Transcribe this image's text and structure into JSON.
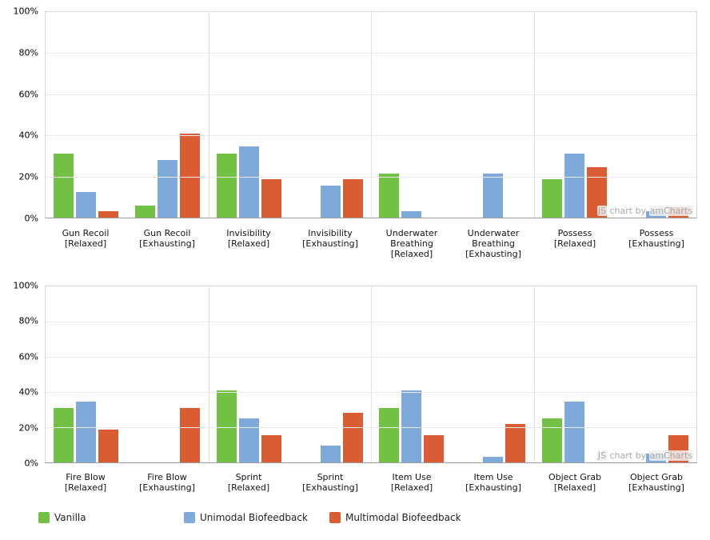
{
  "watermark": {
    "prefix": "JS",
    "middle": " chart by ",
    "suffix": "amCharts",
    "text": "JS chart by amCharts"
  },
  "colors": {
    "vanilla": "#72C144",
    "unimodal": "#7FA9D9",
    "multimodal": "#DA5C33",
    "grid_h": "#E9E9E9",
    "grid_v": "#E2E2E2",
    "plot_border": "#D6D6D6",
    "axis_line": "#9E9E9E"
  },
  "y_axis": {
    "ticks": [
      {
        "label": "0%",
        "value": 0
      },
      {
        "label": "20%",
        "value": 20
      },
      {
        "label": "40%",
        "value": 40
      },
      {
        "label": "60%",
        "value": 60
      },
      {
        "label": "80%",
        "value": 80
      },
      {
        "label": "100%",
        "value": 100
      }
    ]
  },
  "legend": {
    "items": [
      {
        "label": "Vanilla",
        "color": "#72C144"
      },
      {
        "label": "Unimodal Biofeedback",
        "color": "#7FA9D9"
      },
      {
        "label": "Multimodal Biofeedback",
        "color": "#DA5C33"
      }
    ]
  },
  "chart_data": [
    {
      "type": "bar",
      "title": "",
      "ylabel": "",
      "xlabel": "",
      "ylim": [
        0,
        100
      ],
      "grid": true,
      "legend_position": "bottom-shared",
      "categories": [
        "Gun Recoil\n[Relaxed]",
        "Gun Recoil\n[Exhausting]",
        "Invisibility\n[Relaxed]",
        "Invisibility\n[Exhausting]",
        "Underwater\nBreathing\n[Relaxed]",
        "Underwater\nBreathing\n[Exhausting]",
        "Possess\n[Relaxed]",
        "Possess\n[Exhausting]"
      ],
      "series": [
        {
          "name": "Vanilla",
          "color": "#72C144",
          "values": [
            31,
            6,
            31,
            0,
            21.5,
            0,
            18.5,
            0
          ]
        },
        {
          "name": "Unimodal Biofeedback",
          "color": "#7FA9D9",
          "values": [
            12.5,
            28,
            34.5,
            15.5,
            3,
            21.5,
            31,
            3
          ]
        },
        {
          "name": "Multimodal Biofeedback",
          "color": "#DA5C33",
          "values": [
            3,
            41,
            18.5,
            18.5,
            0,
            0,
            24.5,
            5
          ]
        }
      ]
    },
    {
      "type": "bar",
      "title": "",
      "ylabel": "",
      "xlabel": "",
      "ylim": [
        0,
        100
      ],
      "grid": true,
      "legend_position": "bottom-shared",
      "categories": [
        "Fire Blow\n[Relaxed]",
        "Fire Blow\n[Exhausting]",
        "Sprint\n[Relaxed]",
        "Sprint\n[Exhausting]",
        "Item Use\n[Relaxed]",
        "Item Use\n[Exhausting]",
        "Object Grab\n[Relaxed]",
        "Object Grab\n[Exhausting]"
      ],
      "series": [
        {
          "name": "Vanilla",
          "color": "#72C144",
          "values": [
            31,
            0,
            41,
            0,
            31,
            0,
            25,
            0
          ]
        },
        {
          "name": "Unimodal Biofeedback",
          "color": "#7FA9D9",
          "values": [
            34.5,
            0,
            25,
            9.5,
            41,
            3,
            34.5,
            5
          ]
        },
        {
          "name": "Multimodal Biofeedback",
          "color": "#DA5C33",
          "values": [
            18.5,
            31,
            15.5,
            28,
            15.5,
            22,
            0,
            15.5
          ]
        }
      ]
    }
  ]
}
